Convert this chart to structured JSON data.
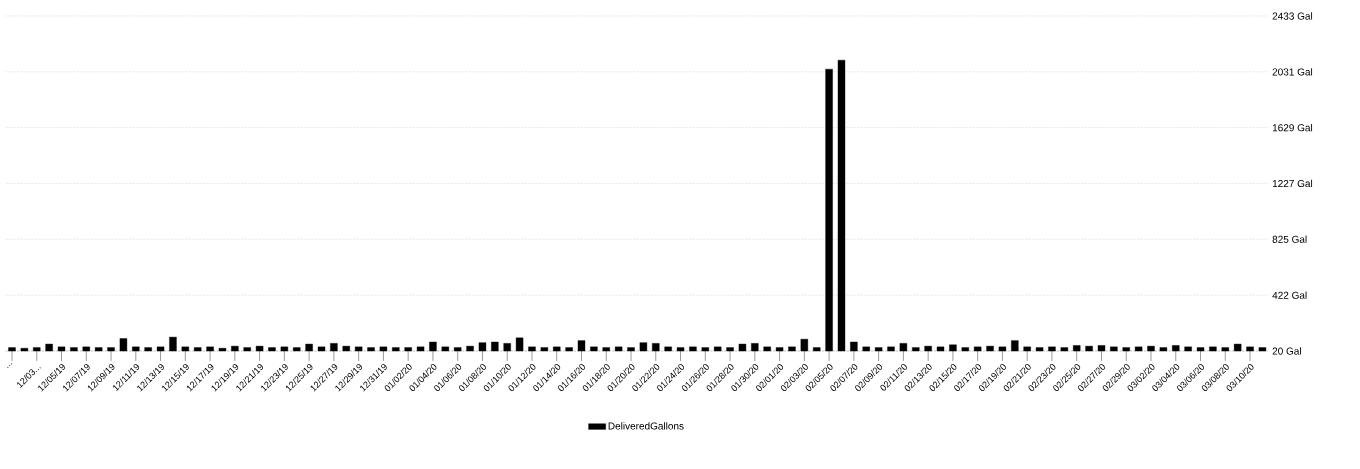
{
  "chart_data": {
    "type": "bar",
    "categories": [
      "...",
      null,
      "12/03...",
      null,
      "12/05/19",
      null,
      "12/07/19",
      null,
      "12/09/19",
      null,
      "12/11/19",
      null,
      "12/13/19",
      null,
      "12/15/19",
      null,
      "12/17/19",
      null,
      "12/19/19",
      null,
      "12/21/19",
      null,
      "12/23/19",
      null,
      "12/25/19",
      null,
      "12/27/19",
      null,
      "12/29/19",
      null,
      "12/31/19",
      null,
      "01/02/20",
      null,
      "01/04/20",
      null,
      "01/06/20",
      null,
      "01/08/20",
      null,
      "01/10/20",
      null,
      "01/12/20",
      null,
      "01/14/20",
      null,
      "01/16/20",
      null,
      "01/18/20",
      null,
      "01/20/20",
      null,
      "01/22/20",
      null,
      "01/24/20",
      null,
      "01/26/20",
      null,
      "01/28/20",
      null,
      "01/30/20",
      null,
      "02/01/20",
      null,
      "02/03/20",
      null,
      "02/05/20",
      null,
      "02/07/20",
      null,
      "02/09/20",
      null,
      "02/11/20",
      null,
      "02/13/20",
      null,
      "02/15/20",
      null,
      "02/17/20",
      null,
      "02/19/20",
      null,
      "02/21/20",
      null,
      "02/23/20",
      null,
      "02/25/20",
      null,
      "02/27/20",
      null,
      "02/29/20",
      null,
      "03/02/20",
      null,
      "03/04/20",
      null,
      "03/06/20",
      null,
      "03/08/20",
      null,
      "03/10/20",
      null
    ],
    "series": [
      {
        "name": "DeliveredGallons",
        "color": "#000000",
        "values": [
          45,
          40,
          45,
          70,
          50,
          45,
          50,
          45,
          45,
          110,
          50,
          45,
          50,
          120,
          50,
          45,
          50,
          40,
          55,
          45,
          55,
          45,
          50,
          45,
          70,
          50,
          75,
          55,
          50,
          45,
          50,
          45,
          45,
          50,
          85,
          50,
          45,
          55,
          80,
          85,
          75,
          115,
          50,
          45,
          50,
          45,
          95,
          50,
          45,
          50,
          45,
          80,
          75,
          50,
          45,
          50,
          45,
          50,
          45,
          70,
          75,
          50,
          45,
          50,
          105,
          45,
          2050,
          2115,
          85,
          50,
          45,
          50,
          75,
          45,
          55,
          50,
          65,
          45,
          50,
          55,
          50,
          95,
          50,
          45,
          50,
          45,
          60,
          55,
          60,
          50,
          45,
          50,
          55,
          45,
          60,
          50,
          45,
          50,
          45,
          70,
          50,
          45
        ]
      }
    ],
    "ylim": [
      20,
      2433
    ],
    "yticks": [
      {
        "value": 20,
        "label": "20 Gal"
      },
      {
        "value": 422,
        "label": "422 Gal"
      },
      {
        "value": 825,
        "label": "825 Gal"
      },
      {
        "value": 1227,
        "label": "1227 Gal"
      },
      {
        "value": 1629,
        "label": "1629 Gal"
      },
      {
        "value": 2031,
        "label": "2031 Gal"
      },
      {
        "value": 2433,
        "label": "2433 Gal"
      }
    ],
    "grid": "y",
    "legend": "bottom"
  }
}
